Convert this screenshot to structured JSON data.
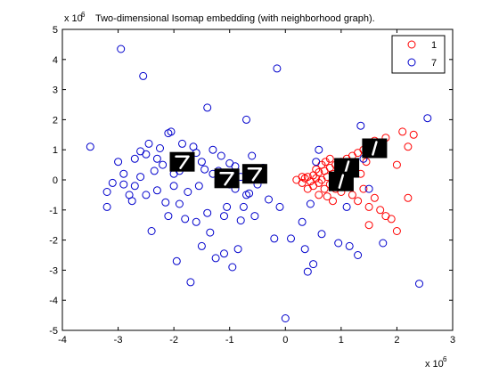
{
  "chart_data": {
    "type": "scatter",
    "title": "Two-dimensional Isomap embedding (with neighborhood graph).",
    "xlabel": "",
    "ylabel": "",
    "x_exponent_label": "x 10",
    "x_exponent": "6",
    "y_exponent_label": "x 10",
    "y_exponent": "6",
    "xlim": [
      -4,
      3
    ],
    "ylim": [
      -5,
      5
    ],
    "xticks": [
      -4,
      -3,
      -2,
      -1,
      0,
      1,
      2,
      3
    ],
    "yticks": [
      -5,
      -4,
      -3,
      -2,
      -1,
      0,
      1,
      2,
      3,
      4,
      5
    ],
    "grid": false,
    "legend_position": "top-right",
    "series": [
      {
        "name": "1",
        "color": "#ff0000",
        "marker": "circle-open",
        "points": [
          [
            0.2,
            0.0
          ],
          [
            0.3,
            -0.1
          ],
          [
            0.35,
            0.05
          ],
          [
            0.4,
            0.1
          ],
          [
            0.45,
            -0.05
          ],
          [
            0.5,
            0.15
          ],
          [
            0.5,
            -0.2
          ],
          [
            0.55,
            0.05
          ],
          [
            0.6,
            0.25
          ],
          [
            0.6,
            -0.1
          ],
          [
            0.65,
            0.0
          ],
          [
            0.7,
            0.3
          ],
          [
            0.7,
            -0.3
          ],
          [
            0.75,
            0.1
          ],
          [
            0.8,
            0.4
          ],
          [
            0.8,
            -0.15
          ],
          [
            0.85,
            0.2
          ],
          [
            0.9,
            0.5
          ],
          [
            0.9,
            -0.3
          ],
          [
            0.95,
            0.0
          ],
          [
            1.0,
            0.6
          ],
          [
            1.0,
            -0.4
          ],
          [
            1.05,
            0.3
          ],
          [
            1.1,
            0.7
          ],
          [
            1.1,
            -0.2
          ],
          [
            1.15,
            0.1
          ],
          [
            1.2,
            0.8
          ],
          [
            1.2,
            -0.5
          ],
          [
            1.25,
            0.4
          ],
          [
            1.3,
            0.9
          ],
          [
            1.3,
            -0.7
          ],
          [
            1.35,
            0.2
          ],
          [
            1.4,
            1.0
          ],
          [
            1.4,
            -0.3
          ],
          [
            1.45,
            0.6
          ],
          [
            1.5,
            1.2
          ],
          [
            1.5,
            -0.9
          ],
          [
            1.6,
            1.3
          ],
          [
            1.6,
            -0.6
          ],
          [
            1.7,
            1.1
          ],
          [
            1.7,
            -1.0
          ],
          [
            1.8,
            1.4
          ],
          [
            1.8,
            -1.2
          ],
          [
            1.9,
            -1.3
          ],
          [
            2.0,
            0.5
          ],
          [
            2.1,
            1.6
          ],
          [
            2.2,
            1.1
          ],
          [
            2.2,
            -0.6
          ],
          [
            2.3,
            1.5
          ],
          [
            2.0,
            -1.7
          ],
          [
            1.5,
            -1.5
          ],
          [
            0.6,
            -0.5
          ],
          [
            0.75,
            -0.55
          ],
          [
            0.85,
            -0.7
          ],
          [
            0.4,
            -0.3
          ],
          [
            0.55,
            0.35
          ],
          [
            0.65,
            0.5
          ],
          [
            0.72,
            0.6
          ],
          [
            0.8,
            0.7
          ],
          [
            0.3,
            0.1
          ]
        ]
      },
      {
        "name": "7",
        "color": "#0000cc",
        "marker": "circle-open",
        "points": [
          [
            -3.5,
            1.1
          ],
          [
            -3.2,
            -0.4
          ],
          [
            -3.2,
            -0.9
          ],
          [
            -3.1,
            -0.1
          ],
          [
            -3.0,
            0.6
          ],
          [
            -2.95,
            4.35
          ],
          [
            -2.9,
            0.2
          ],
          [
            -2.8,
            -0.5
          ],
          [
            -2.75,
            -0.7
          ],
          [
            -2.7,
            0.7
          ],
          [
            -2.6,
            0.95
          ],
          [
            -2.55,
            3.45
          ],
          [
            -2.5,
            0.85
          ],
          [
            -2.45,
            1.2
          ],
          [
            -2.4,
            -1.7
          ],
          [
            -2.35,
            0.3
          ],
          [
            -2.3,
            -0.35
          ],
          [
            -2.25,
            1.05
          ],
          [
            -2.2,
            0.5
          ],
          [
            -2.15,
            -0.75
          ],
          [
            -2.1,
            1.55
          ],
          [
            -2.05,
            1.6
          ],
          [
            -2.0,
            -0.2
          ],
          [
            -1.95,
            -2.7
          ],
          [
            -1.9,
            -0.8
          ],
          [
            -1.85,
            1.2
          ],
          [
            -1.8,
            0.6
          ],
          [
            -1.75,
            -0.4
          ],
          [
            -1.7,
            -3.4
          ],
          [
            -1.65,
            1.1
          ],
          [
            -1.6,
            -1.4
          ],
          [
            -1.55,
            -0.2
          ],
          [
            -1.5,
            -2.2
          ],
          [
            -1.45,
            0.35
          ],
          [
            -1.4,
            2.4
          ],
          [
            -1.35,
            -1.75
          ],
          [
            -1.3,
            1.0
          ],
          [
            -1.25,
            -2.6
          ],
          [
            -1.2,
            -0.1
          ],
          [
            -1.15,
            0.8
          ],
          [
            -1.1,
            -2.45
          ],
          [
            -1.05,
            -0.9
          ],
          [
            -1.0,
            0.55
          ],
          [
            -0.95,
            -2.9
          ],
          [
            -0.9,
            -0.3
          ],
          [
            -0.85,
            -2.3
          ],
          [
            -0.8,
            0.1
          ],
          [
            -0.75,
            -0.9
          ],
          [
            -0.7,
            2.0
          ],
          [
            -0.65,
            -0.45
          ],
          [
            -0.6,
            0.2
          ],
          [
            -0.55,
            -1.2
          ],
          [
            -0.5,
            -0.15
          ],
          [
            -0.4,
            0.4
          ],
          [
            -0.3,
            -0.65
          ],
          [
            -0.2,
            -1.95
          ],
          [
            -0.15,
            3.7
          ],
          [
            -0.1,
            -0.9
          ],
          [
            0.0,
            -4.6
          ],
          [
            0.1,
            -1.95
          ],
          [
            0.3,
            -1.4
          ],
          [
            0.35,
            -2.3
          ],
          [
            0.4,
            -3.05
          ],
          [
            0.5,
            -2.8
          ],
          [
            0.45,
            -0.8
          ],
          [
            0.55,
            0.6
          ],
          [
            0.6,
            1.0
          ],
          [
            0.65,
            -1.8
          ],
          [
            0.95,
            -2.1
          ],
          [
            1.1,
            -0.9
          ],
          [
            1.15,
            -2.2
          ],
          [
            1.3,
            -2.5
          ],
          [
            1.35,
            1.8
          ],
          [
            1.4,
            0.7
          ],
          [
            2.55,
            2.05
          ],
          [
            2.4,
            -3.45
          ],
          [
            1.75,
            -2.1
          ],
          [
            1.5,
            -0.3
          ],
          [
            -2.6,
            0.1
          ],
          [
            -2.3,
            0.7
          ],
          [
            -2.0,
            0.2
          ],
          [
            -1.9,
            0.3
          ],
          [
            -1.6,
            0.9
          ],
          [
            -1.5,
            0.6
          ],
          [
            -1.3,
            0.2
          ],
          [
            -1.2,
            0.3
          ],
          [
            -1.0,
            -0.15
          ],
          [
            -0.9,
            0.45
          ],
          [
            -0.7,
            -0.5
          ],
          [
            -0.6,
            0.8
          ],
          [
            -2.1,
            -1.2
          ],
          [
            -1.8,
            -1.3
          ],
          [
            -1.4,
            -1.1
          ],
          [
            -1.1,
            -1.2
          ],
          [
            -0.8,
            -1.35
          ],
          [
            -2.9,
            -0.15
          ],
          [
            -2.7,
            -0.2
          ],
          [
            -2.5,
            -0.5
          ]
        ]
      }
    ],
    "thumbnail_images": [
      {
        "label": "digit-7",
        "center": [
          -1.85,
          0.6
        ]
      },
      {
        "label": "digit-7",
        "center": [
          -1.05,
          0.05
        ]
      },
      {
        "label": "digit-7",
        "center": [
          -0.55,
          0.2
        ]
      },
      {
        "label": "digit-1",
        "center": [
          1.1,
          0.4
        ]
      },
      {
        "label": "digit-1",
        "center": [
          1.6,
          1.05
        ]
      },
      {
        "label": "digit-1",
        "center": [
          1.0,
          -0.05
        ]
      }
    ]
  }
}
